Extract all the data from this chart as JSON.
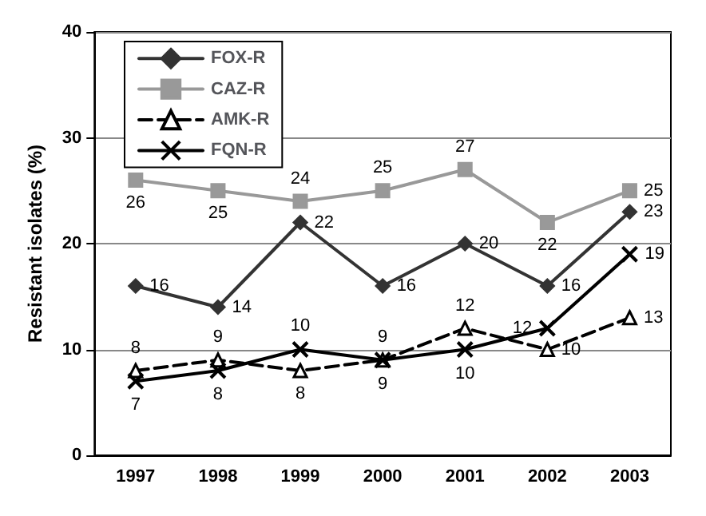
{
  "chart_data": {
    "type": "line",
    "ylabel": "Resistant isolates (%)",
    "categories": [
      "1997",
      "1998",
      "1999",
      "2000",
      "2001",
      "2002",
      "2003"
    ],
    "series": [
      {
        "name": "FOX-R",
        "color": "#333333",
        "values": [
          16,
          14,
          22,
          16,
          20,
          16,
          23
        ],
        "marker": "diamond",
        "line_style": "solid"
      },
      {
        "name": "CAZ-R",
        "color": "#999999",
        "values": [
          26,
          25,
          24,
          25,
          27,
          22,
          25
        ],
        "marker": "square",
        "line_style": "solid"
      },
      {
        "name": "AMK-R",
        "color": "#000000",
        "values": [
          8,
          9,
          8,
          9,
          12,
          10,
          13
        ],
        "marker": "triangle",
        "line_style": "dashed"
      },
      {
        "name": "FQN-R",
        "color": "#000000",
        "values": [
          7,
          8,
          10,
          9,
          10,
          12,
          19
        ],
        "marker": "cross",
        "line_style": "solid"
      }
    ],
    "ylim": [
      0,
      40
    ],
    "yticks": [
      0,
      10,
      20,
      30,
      40
    ],
    "grid": "y",
    "legend": "top left",
    "data_labels": true
  }
}
